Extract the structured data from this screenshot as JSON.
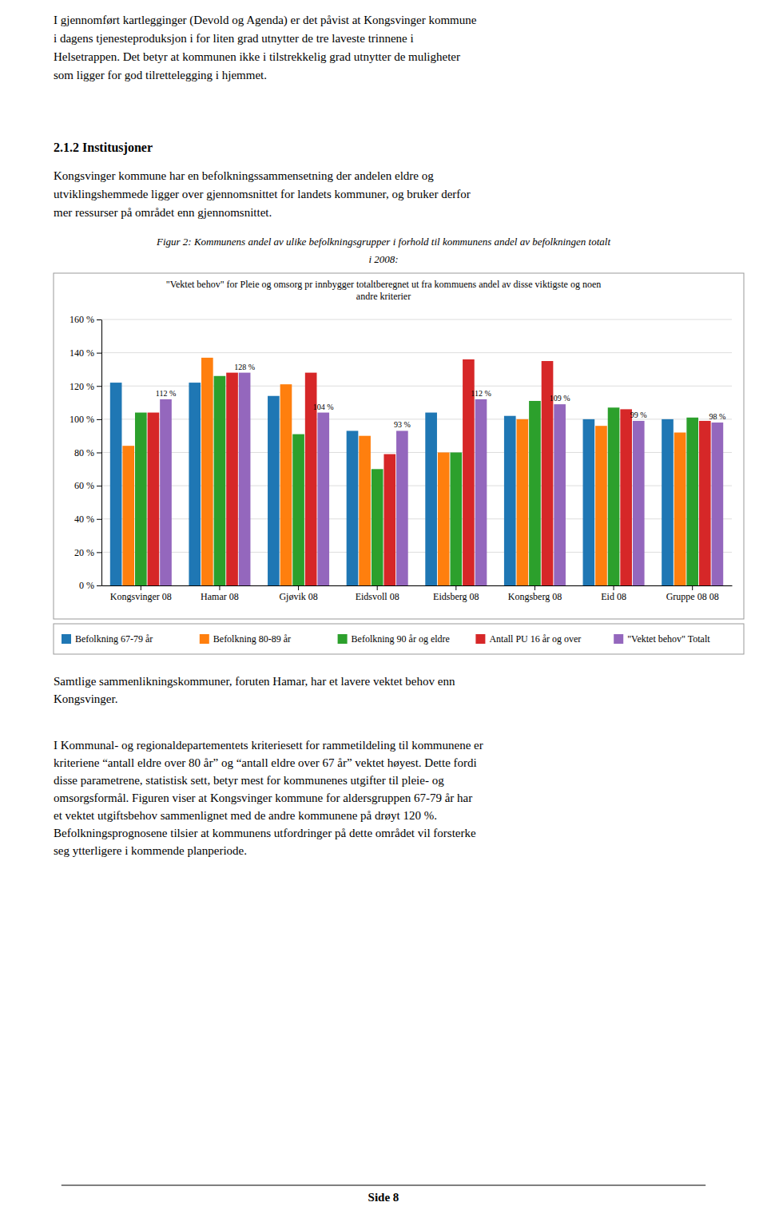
{
  "intro_text": "I gjennomført kartlegginger (Devold og Agenda) er det påvist at Kongsvinger kommune\ni dagens tjenesteproduksjon i for liten grad utnytter de tre laveste trinnene i\nHelsetrappen. Det betyr at kommunen ikke i tilstrekkelig grad utnytter de muligheter\nsom ligger for god tilrettelegging i hjemmet.",
  "section_header": "2.1.2  Institusjoner",
  "section_text": "Kongsvinger kommune har en befolkningssammensetning der andelen eldre og\nutviklingshemmede ligger over gjennomsnittet for landets kommuner, og bruker derfor\nmer ressurser på området enn gjennomsnittet.",
  "caption": "Figur 2: Kommunens andel av ulike befolkningsgrupper i forhold til kommunens andel av befolkningen totalt\ni 2008:",
  "chart_data": {
    "type": "bar",
    "title": "\"Vektet behov\" for Pleie og omsorg pr innbygger totaltberegnet ut fra kommuens andel av disse viktigste og noen\nandre kriterier",
    "categories": [
      "Kongsvinger 08",
      "Hamar 08",
      "Gjøvik 08",
      "Eidsvoll 08",
      "Eidsberg 08",
      "Kongsberg 08",
      "Eid 08",
      "Gruppe 08 08"
    ],
    "series": [
      {
        "name": "Befolkning 67-79 år",
        "values": [
          122,
          122,
          114,
          93,
          104,
          102,
          100,
          100
        ]
      },
      {
        "name": "Befolkning 80-89 år",
        "values": [
          84,
          137,
          121,
          90,
          80,
          100,
          96,
          92
        ]
      },
      {
        "name": "Befolkning 90 år og eldre",
        "values": [
          104,
          126,
          91,
          70,
          80,
          111,
          107,
          101
        ]
      },
      {
        "name": "Antall PU 16 år og over",
        "values": [
          104,
          128,
          128,
          79,
          136,
          135,
          106,
          99
        ]
      },
      {
        "name": "\"Vektet behov\" Totalt",
        "values": [
          112,
          128,
          104,
          93,
          112,
          109,
          99,
          98
        ],
        "value_labels": [
          "112 %",
          "128 %",
          "104 %",
          "93 %",
          "112 %",
          "109 %",
          "99 %",
          "98 %"
        ]
      }
    ],
    "ylim": [
      0,
      160
    ],
    "yticks": [
      {
        "value": 0,
        "label": "0 %"
      },
      {
        "value": 20,
        "label": "20 %"
      },
      {
        "value": 40,
        "label": "40 %"
      },
      {
        "value": 60,
        "label": "60 %"
      },
      {
        "value": 80,
        "label": "80 %"
      },
      {
        "value": 100,
        "label": "100 %"
      },
      {
        "value": 120,
        "label": "120 %"
      },
      {
        "value": 140,
        "label": "140 %"
      },
      {
        "value": 160,
        "label": "160 %"
      }
    ],
    "grid": true,
    "legend": "bottom"
  },
  "bottom_para1": "Samtlige sammenlikningskommuner, foruten Hamar, har et lavere vektet behov enn\nKongsvinger.",
  "bottom_para2": "I Kommunal- og regionaldepartementets kriteriesett for rammetildeling til kommunene er\nkriteriene “antall eldre over 80 år” og “antall eldre over 67 år” vektet høyest. Dette fordi\ndisse parametrene, statistisk sett, betyr mest for kommunenes utgifter til pleie- og\nomsorgsformål. Figuren viser at Kongsvinger kommune for aldersgruppen 67-79 år har\net vektet utgiftsbehov sammenlignet med de andre kommunene på drøyt 120 %.\nBefolkningsprognosene tilsier at kommunens utfordringer på dette området vil forsterke\nseg ytterligere i kommende planperiode.",
  "footer_text": "Side 8"
}
